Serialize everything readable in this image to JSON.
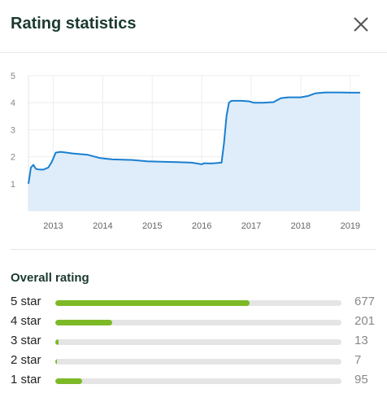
{
  "header": {
    "title": "Rating statistics",
    "close_icon": "close-icon"
  },
  "chart_data": {
    "type": "area",
    "title": "",
    "xlabel": "",
    "ylabel": "",
    "x_ticks": [
      "2013",
      "2014",
      "2015",
      "2016",
      "2017",
      "2018",
      "2019"
    ],
    "y_ticks": [
      "1",
      "2",
      "3",
      "4",
      "5"
    ],
    "ylim": [
      0,
      5
    ],
    "xlim": [
      2012.5,
      2019.2
    ],
    "line_color": "#1a7fd0",
    "fill_color": "#deedf9",
    "series": [
      {
        "x": [
          2012.5,
          2012.55,
          2012.6,
          2012.65,
          2012.7,
          2012.8,
          2012.9,
          2012.97,
          2013.05,
          2013.15,
          2013.4,
          2013.7,
          2013.95,
          2014.2,
          2014.6,
          2014.9,
          2015.1,
          2015.5,
          2015.8,
          2016.0,
          2016.05,
          2016.2,
          2016.4,
          2016.45,
          2016.5,
          2016.55,
          2016.6,
          2016.8,
          2016.95,
          2017.05,
          2017.25,
          2017.45,
          2017.6,
          2017.75,
          2018.0,
          2018.15,
          2018.3,
          2018.5,
          2018.8,
          2019.0,
          2019.2
        ],
        "y": [
          1.0,
          1.6,
          1.7,
          1.55,
          1.53,
          1.52,
          1.6,
          1.8,
          2.15,
          2.18,
          2.12,
          2.07,
          1.95,
          1.9,
          1.88,
          1.83,
          1.82,
          1.8,
          1.78,
          1.72,
          1.76,
          1.75,
          1.78,
          2.5,
          3.5,
          4.0,
          4.07,
          4.07,
          4.05,
          4.0,
          4.0,
          4.02,
          4.17,
          4.2,
          4.2,
          4.25,
          4.35,
          4.38,
          4.38,
          4.37,
          4.37
        ]
      }
    ]
  },
  "overall": {
    "title": "Overall rating",
    "rows": [
      {
        "label": "5 star",
        "count": "677",
        "fraction": 0.68
      },
      {
        "label": "4 star",
        "count": "201",
        "fraction": 0.2
      },
      {
        "label": "3 star",
        "count": "13",
        "fraction": 0.012
      },
      {
        "label": "2 star",
        "count": "7",
        "fraction": 0.006
      },
      {
        "label": "1 star",
        "count": "95",
        "fraction": 0.095
      }
    ],
    "bar_color": "#7db926",
    "track_color": "#e5e5e5"
  }
}
